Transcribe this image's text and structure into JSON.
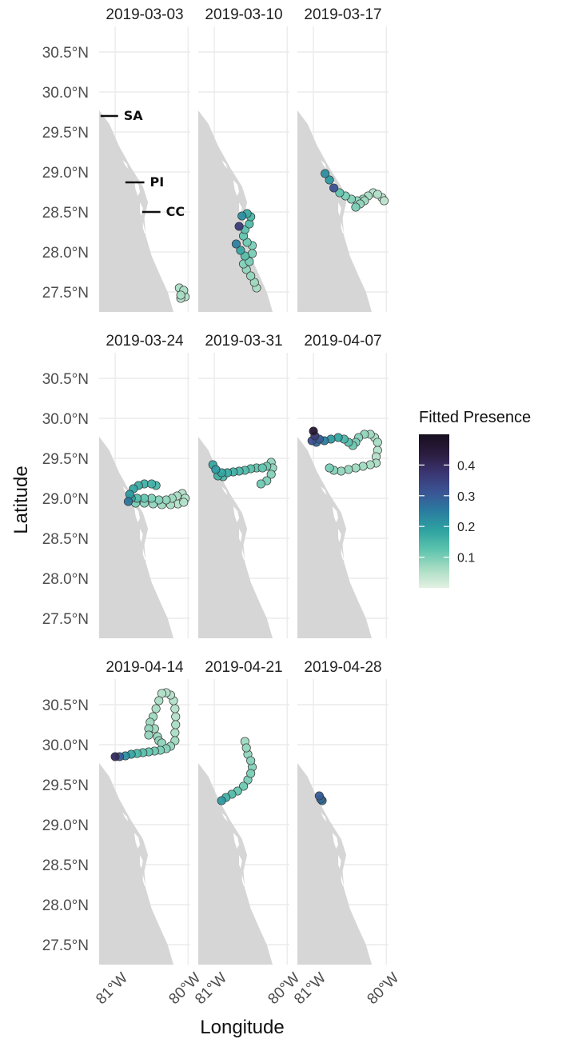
{
  "chart_data": {
    "type": "scatter",
    "geometry": "faceted map of tracked positions",
    "xlabel": "Longitude",
    "ylabel": "Latitude",
    "x_ticks": [
      {
        "value": -81,
        "label": "81°W"
      },
      {
        "value": -80,
        "label": "80°W"
      }
    ],
    "y_ticks": [
      {
        "value": 27.5,
        "label": "27.5°N"
      },
      {
        "value": 28.0,
        "label": "28.0°N"
      },
      {
        "value": 28.5,
        "label": "28.5°N"
      },
      {
        "value": 29.0,
        "label": "29.0°N"
      },
      {
        "value": 29.5,
        "label": "29.5°N"
      },
      {
        "value": 30.0,
        "label": "30.0°N"
      },
      {
        "value": 30.5,
        "label": "30.5°N"
      }
    ],
    "xlim": [
      -81.22,
      -79.97
    ],
    "ylim": [
      27.25,
      30.82
    ],
    "grid": true,
    "land_color": "#d6d6d6",
    "point_outline": "#333333",
    "legend": {
      "title": "Fitted Presence",
      "position": "right",
      "ticks": [
        0.1,
        0.2,
        0.3,
        0.4
      ],
      "ticks_labels": [
        "0.1",
        "0.2",
        "0.3",
        "0.4"
      ],
      "range": [
        0.0,
        0.5
      ],
      "colors": [
        "#e4f1e2",
        "#a7dcc3",
        "#5cc3ad",
        "#2ea2a0",
        "#2a7ca0",
        "#3a5494",
        "#3a3571",
        "#2b1c3f",
        "#170f1f"
      ]
    },
    "annotations": [
      {
        "label": "SA",
        "lat": 29.7,
        "lon_start": -81.2,
        "lon_end": -80.96
      },
      {
        "label": "PI",
        "lat": 28.87,
        "lon_start": -80.86,
        "lon_end": -80.6
      },
      {
        "label": "CC",
        "lat": 28.5,
        "lon_start": -80.63,
        "lon_end": -80.38
      }
    ],
    "facets": [
      {
        "date": "2019-03-03",
        "segments": [
          [
            [
              -80.12,
              27.55
            ],
            [
              -80.06,
              27.52
            ],
            [
              -80.1,
              27.46
            ],
            [
              -80.04,
              27.44
            ],
            [
              -80.1,
              27.42
            ]
          ]
        ],
        "fitted": [
          0.06,
          0.06,
          0.06,
          0.05,
          0.05
        ]
      },
      {
        "date": "2019-03-10",
        "segments": [
          [
            [
              -80.66,
              28.32
            ],
            [
              -80.62,
              28.45
            ],
            [
              -80.55,
              28.48
            ],
            [
              -80.5,
              28.44
            ],
            [
              -80.52,
              28.35
            ],
            [
              -80.58,
              28.28
            ],
            [
              -80.6,
              28.2
            ],
            [
              -80.55,
              28.12
            ],
            [
              -80.48,
              28.08
            ],
            [
              -80.48,
              27.98
            ],
            [
              -80.55,
              27.92
            ],
            [
              -80.6,
              27.85
            ],
            [
              -80.56,
              27.78
            ],
            [
              -80.5,
              27.7
            ],
            [
              -80.45,
              27.62
            ],
            [
              -80.42,
              27.55
            ]
          ],
          [
            [
              -80.7,
              28.1
            ],
            [
              -80.64,
              28.02
            ],
            [
              -80.58,
              27.95
            ],
            [
              -80.52,
              27.88
            ]
          ]
        ],
        "fitted": [
          0.36,
          0.22,
          0.17,
          0.15,
          0.14,
          0.13,
          0.12,
          0.11,
          0.1,
          0.1,
          0.09,
          0.09,
          0.08,
          0.08,
          0.07,
          0.06,
          0.24,
          0.18,
          0.13,
          0.1
        ]
      },
      {
        "date": "2019-03-17",
        "segments": [
          [
            [
              -80.84,
              28.98
            ],
            [
              -80.78,
              28.9
            ],
            [
              -80.72,
              28.8
            ],
            [
              -80.64,
              28.74
            ],
            [
              -80.56,
              28.7
            ],
            [
              -80.48,
              28.66
            ],
            [
              -80.4,
              28.64
            ],
            [
              -80.32,
              28.66
            ],
            [
              -80.25,
              28.7
            ],
            [
              -80.18,
              28.74
            ],
            [
              -80.12,
              28.72
            ],
            [
              -80.06,
              28.68
            ],
            [
              -80.03,
              28.64
            ]
          ],
          [
            [
              -80.42,
              28.56
            ],
            [
              -80.36,
              28.6
            ],
            [
              -80.3,
              28.64
            ]
          ]
        ],
        "fitted": [
          0.22,
          0.2,
          0.32,
          0.12,
          0.1,
          0.09,
          0.08,
          0.07,
          0.06,
          0.05,
          0.05,
          0.04,
          0.04,
          0.1,
          0.08,
          0.07
        ]
      },
      {
        "date": "2019-03-24",
        "segments": [
          [
            [
              -80.82,
              28.96
            ],
            [
              -80.8,
              29.05
            ],
            [
              -80.75,
              29.12
            ],
            [
              -80.68,
              29.16
            ],
            [
              -80.6,
              29.18
            ],
            [
              -80.5,
              29.18
            ],
            [
              -80.44,
              29.16
            ]
          ],
          [
            [
              -80.78,
              29.0
            ],
            [
              -80.7,
              29.0
            ],
            [
              -80.6,
              29.0
            ],
            [
              -80.5,
              29.0
            ],
            [
              -80.4,
              28.98
            ],
            [
              -80.3,
              28.98
            ],
            [
              -80.22,
              29.0
            ],
            [
              -80.15,
              29.03
            ],
            [
              -80.08,
              29.06
            ],
            [
              -80.04,
              29.0
            ]
          ],
          [
            [
              -80.72,
              28.94
            ],
            [
              -80.6,
              28.94
            ],
            [
              -80.48,
              28.93
            ],
            [
              -80.36,
              28.92
            ],
            [
              -80.24,
              28.92
            ],
            [
              -80.14,
              28.93
            ],
            [
              -80.06,
              28.95
            ]
          ]
        ],
        "fitted": [
          0.26,
          0.2,
          0.18,
          0.17,
          0.16,
          0.16,
          0.15,
          0.18,
          0.14,
          0.12,
          0.1,
          0.09,
          0.08,
          0.07,
          0.06,
          0.05,
          0.05,
          0.1,
          0.09,
          0.08,
          0.07,
          0.06,
          0.05,
          0.05
        ]
      },
      {
        "date": "2019-03-31",
        "segments": [
          [
            [
              -81.02,
              29.42
            ],
            [
              -80.98,
              29.36
            ],
            [
              -80.9,
              29.32
            ],
            [
              -80.82,
              29.32
            ],
            [
              -80.74,
              29.33
            ],
            [
              -80.66,
              29.34
            ],
            [
              -80.58,
              29.35
            ],
            [
              -80.5,
              29.37
            ],
            [
              -80.42,
              29.38
            ],
            [
              -80.34,
              29.38
            ],
            [
              -80.28,
              29.4
            ]
          ],
          [
            [
              -80.22,
              29.45
            ],
            [
              -80.2,
              29.38
            ],
            [
              -80.22,
              29.3
            ],
            [
              -80.28,
              29.22
            ],
            [
              -80.36,
              29.18
            ]
          ],
          [
            [
              -80.95,
              29.28
            ],
            [
              -80.88,
              29.27
            ]
          ]
        ],
        "fitted": [
          0.18,
          0.2,
          0.18,
          0.17,
          0.16,
          0.15,
          0.14,
          0.13,
          0.12,
          0.12,
          0.11,
          0.08,
          0.08,
          0.09,
          0.1,
          0.11,
          0.16,
          0.15
        ]
      },
      {
        "date": "2019-04-07",
        "segments": [
          [
            [
              -81.0,
              29.84
            ],
            [
              -80.98,
              29.78
            ],
            [
              -80.92,
              29.74
            ],
            [
              -80.85,
              29.72
            ],
            [
              -80.76,
              29.74
            ],
            [
              -80.66,
              29.76
            ],
            [
              -80.58,
              29.74
            ],
            [
              -80.52,
              29.7
            ],
            [
              -80.46,
              29.66
            ],
            [
              -80.42,
              29.7
            ],
            [
              -80.38,
              29.76
            ],
            [
              -80.3,
              29.8
            ],
            [
              -80.22,
              29.8
            ],
            [
              -80.16,
              29.76
            ],
            [
              -80.12,
              29.7
            ],
            [
              -80.12,
              29.6
            ],
            [
              -80.14,
              29.52
            ],
            [
              -80.14,
              29.44
            ],
            [
              -80.22,
              29.42
            ],
            [
              -80.32,
              29.4
            ],
            [
              -80.42,
              29.38
            ],
            [
              -80.52,
              29.36
            ],
            [
              -80.62,
              29.34
            ],
            [
              -80.72,
              29.35
            ],
            [
              -80.78,
              29.38
            ]
          ],
          [
            [
              -81.02,
              29.72
            ],
            [
              -80.96,
              29.7
            ]
          ]
        ],
        "fitted": [
          0.46,
          0.36,
          0.3,
          0.25,
          0.2,
          0.18,
          0.15,
          0.13,
          0.11,
          0.1,
          0.09,
          0.08,
          0.07,
          0.06,
          0.06,
          0.05,
          0.05,
          0.06,
          0.06,
          0.07,
          0.07,
          0.08,
          0.08,
          0.09,
          0.1,
          0.32,
          0.28
        ]
      },
      {
        "date": "2019-04-14",
        "segments": [
          [
            [
              -81.0,
              29.85
            ],
            [
              -80.94,
              29.85
            ],
            [
              -80.86,
              29.86
            ],
            [
              -80.78,
              29.88
            ],
            [
              -80.7,
              29.89
            ],
            [
              -80.62,
              29.9
            ],
            [
              -80.54,
              29.91
            ],
            [
              -80.46,
              29.92
            ],
            [
              -80.38,
              29.93
            ],
            [
              -80.3,
              29.95
            ],
            [
              -80.24,
              29.98
            ],
            [
              -80.18,
              30.05
            ],
            [
              -80.18,
              30.15
            ],
            [
              -80.17,
              30.25
            ],
            [
              -80.17,
              30.35
            ],
            [
              -80.18,
              30.45
            ],
            [
              -80.2,
              30.55
            ],
            [
              -80.24,
              30.62
            ],
            [
              -80.3,
              30.65
            ],
            [
              -80.36,
              30.64
            ],
            [
              -80.4,
              30.55
            ],
            [
              -80.44,
              30.45
            ],
            [
              -80.48,
              30.35
            ],
            [
              -80.52,
              30.28
            ],
            [
              -80.54,
              30.2
            ],
            [
              -80.54,
              30.12
            ]
          ],
          [
            [
              -80.46,
              30.2
            ],
            [
              -80.42,
              30.1
            ],
            [
              -80.4,
              30.05
            ],
            [
              -80.36,
              30.02
            ]
          ]
        ],
        "fitted": [
          0.4,
          0.3,
          0.22,
          0.18,
          0.15,
          0.13,
          0.12,
          0.11,
          0.1,
          0.09,
          0.08,
          0.07,
          0.06,
          0.06,
          0.05,
          0.05,
          0.05,
          0.05,
          0.05,
          0.05,
          0.06,
          0.06,
          0.07,
          0.07,
          0.08,
          0.08,
          0.07,
          0.07,
          0.08,
          0.08
        ]
      },
      {
        "date": "2019-04-21",
        "segments": [
          [
            [
              -80.9,
              29.3
            ],
            [
              -80.84,
              29.34
            ],
            [
              -80.76,
              29.38
            ],
            [
              -80.68,
              29.42
            ],
            [
              -80.6,
              29.48
            ],
            [
              -80.54,
              29.56
            ],
            [
              -80.5,
              29.64
            ],
            [
              -80.48,
              29.72
            ],
            [
              -80.5,
              29.8
            ],
            [
              -80.54,
              29.88
            ],
            [
              -80.56,
              29.96
            ],
            [
              -80.58,
              30.04
            ]
          ]
        ],
        "fitted": [
          0.2,
          0.16,
          0.14,
          0.12,
          0.11,
          0.1,
          0.1,
          0.09,
          0.09,
          0.08,
          0.08,
          0.07
        ]
      },
      {
        "date": "2019-04-28",
        "segments": [
          [
            [
              -80.92,
              29.36
            ],
            [
              -80.9,
              29.32
            ],
            [
              -80.88,
              29.3
            ]
          ]
        ],
        "fitted": [
          0.3,
          0.28,
          0.26
        ]
      }
    ]
  }
}
